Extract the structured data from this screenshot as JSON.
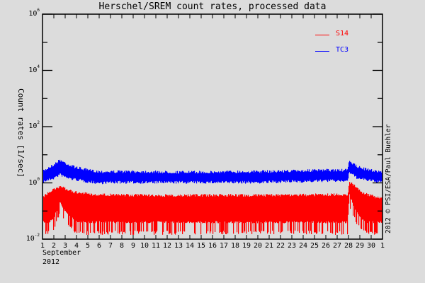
{
  "chart_data": {
    "type": "line",
    "title": "Herschel/SREM count rates, processed data",
    "xlabel": "September 2012",
    "ylabel": "Count rates [1/sec]",
    "yscale": "log",
    "ylim": [
      0.01,
      1000000
    ],
    "xlim": [
      1,
      31
    ],
    "y_tick_labels": [
      "10^6",
      "10^4",
      "10^2",
      "10^0",
      "10^-2"
    ],
    "y_tick_values": [
      1000000,
      10000,
      100,
      1,
      0.01
    ],
    "x_tick_labels": [
      "1",
      "2",
      "3",
      "4",
      "5",
      "6",
      "7",
      "8",
      "9",
      "10",
      "11",
      "12",
      "13",
      "14",
      "15",
      "16",
      "17",
      "18",
      "19",
      "20",
      "21",
      "22",
      "23",
      "24",
      "25",
      "26",
      "27",
      "28",
      "29",
      "30",
      "1"
    ],
    "x_month": "September",
    "x_year": "2012",
    "legend_position": "upper right",
    "grid": false,
    "credit": "2012 © PSI/ESA/Paul Buehler",
    "x": [
      1,
      1.5,
      2,
      2.5,
      3,
      3.5,
      4,
      5,
      6,
      7,
      8,
      10,
      12,
      14,
      16,
      18,
      20,
      22,
      24,
      26,
      27,
      27.9,
      28.05,
      28.3,
      28.6,
      29,
      29.5,
      30,
      30.5,
      31
    ],
    "series": [
      {
        "name": "S14",
        "color": "#ff0000",
        "upper": [
          0.3,
          0.45,
          0.6,
          0.75,
          0.6,
          0.5,
          0.45,
          0.4,
          0.38,
          0.38,
          0.37,
          0.36,
          0.36,
          0.36,
          0.36,
          0.36,
          0.36,
          0.36,
          0.37,
          0.38,
          0.38,
          0.38,
          1.0,
          0.9,
          0.7,
          0.5,
          0.4,
          0.35,
          0.3,
          0.3
        ],
        "lower": [
          0.02,
          0.02,
          0.03,
          0.1,
          0.05,
          0.03,
          0.02,
          0.02,
          0.02,
          0.02,
          0.02,
          0.02,
          0.02,
          0.02,
          0.02,
          0.02,
          0.02,
          0.02,
          0.02,
          0.02,
          0.02,
          0.02,
          0.2,
          0.1,
          0.05,
          0.03,
          0.02,
          0.02,
          0.02,
          0.02
        ]
      },
      {
        "name": "TC3",
        "color": "#0000ff",
        "upper": [
          2.5,
          3.5,
          4.5,
          6.5,
          5.0,
          4.0,
          3.5,
          2.8,
          2.5,
          2.5,
          2.5,
          2.5,
          2.4,
          2.4,
          2.4,
          2.5,
          2.5,
          2.6,
          2.7,
          2.8,
          2.8,
          2.8,
          6.5,
          5.0,
          4.0,
          3.5,
          3.0,
          2.8,
          2.6,
          2.5
        ],
        "lower": [
          1.1,
          1.3,
          1.5,
          2.0,
          1.6,
          1.4,
          1.3,
          1.1,
          1.0,
          1.05,
          1.05,
          1.05,
          1.05,
          1.05,
          1.05,
          1.05,
          1.05,
          1.1,
          1.15,
          1.2,
          1.2,
          1.2,
          2.5,
          2.0,
          1.6,
          1.4,
          1.3,
          1.2,
          1.1,
          1.1
        ]
      }
    ]
  },
  "legend": {
    "items": [
      {
        "label": "S14",
        "color": "#ff0000"
      },
      {
        "label": "TC3",
        "color": "#0000ff"
      }
    ]
  },
  "colors": {
    "background": "#dcdcdc",
    "axis": "#000000"
  }
}
